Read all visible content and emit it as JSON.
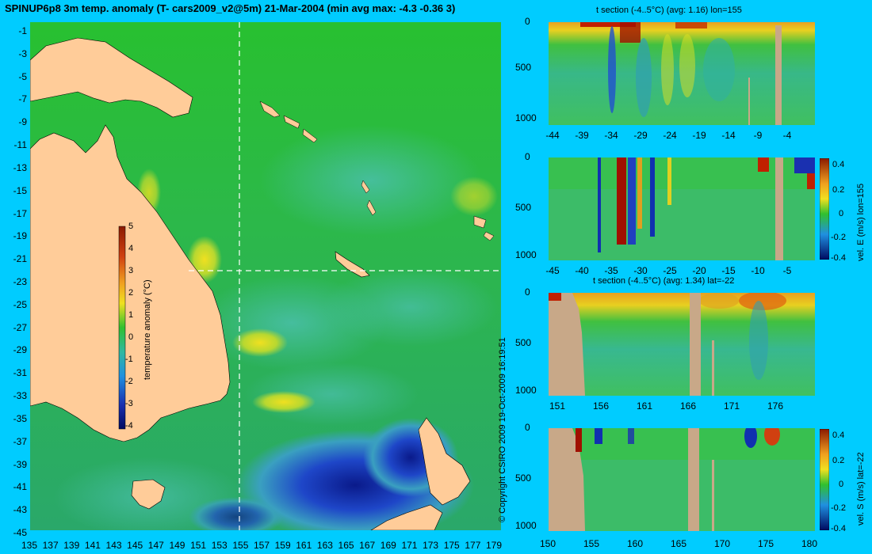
{
  "map": {
    "title": "SPINUP6p8 3m temp. anomaly (T- cars2009_v2@5m) 21-Mar-2004 (min avg max: -4.3 -0.36 3)",
    "lat_ticks": [
      "-1",
      "-3",
      "-5",
      "-7",
      "-9",
      "-11",
      "-13",
      "-15",
      "-17",
      "-19",
      "-21",
      "-23",
      "-25",
      "-27",
      "-29",
      "-31",
      "-33",
      "-35",
      "-37",
      "-39",
      "-41",
      "-43",
      "-45"
    ],
    "lon_ticks": [
      "135",
      "137",
      "139",
      "141",
      "143",
      "145",
      "147",
      "149",
      "151",
      "153",
      "155",
      "157",
      "159",
      "161",
      "163",
      "165",
      "167",
      "169",
      "171",
      "173",
      "175",
      "177",
      "179"
    ],
    "colorbar": {
      "label": "temperature anomaly (°C)",
      "ticks": [
        "5",
        "4",
        "3",
        "2",
        "1",
        "0",
        "-1",
        "-2",
        "-3",
        "-4"
      ]
    },
    "crosshair": {
      "lon": 155,
      "lat": -22
    }
  },
  "copyright": "© Copyright CSIRO 2009   19-Oct-2009 16:19:51",
  "panels": [
    {
      "title": "t section (-4..5°C) (avg: 1.16) lon=155",
      "side_label": "",
      "y_ticks": [
        "0",
        "500",
        "1000"
      ],
      "x_ticks": [
        "-44",
        "-39",
        "-34",
        "-29",
        "-24",
        "-19",
        "-14",
        "-9",
        "-4"
      ],
      "colorbar_ticks": []
    },
    {
      "title": "",
      "side_label": "vel. E (m/s) lon=155",
      "y_ticks": [
        "0",
        "500",
        "1000"
      ],
      "x_ticks": [
        "-45",
        "-40",
        "-35",
        "-30",
        "-25",
        "-20",
        "-15",
        "-10",
        "-5"
      ],
      "colorbar_ticks": [
        "0.4",
        "0.2",
        "0",
        "-0.2",
        "-0.4"
      ]
    },
    {
      "title": "t section (-4..5°C) (avg: 1.34) lat=-22",
      "side_label": "",
      "y_ticks": [
        "0",
        "500",
        "1000"
      ],
      "x_ticks": [
        "151",
        "156",
        "161",
        "166",
        "171",
        "176"
      ],
      "colorbar_ticks": []
    },
    {
      "title": "",
      "side_label": "vel. S (m/s) lat=-22",
      "y_ticks": [
        "0",
        "500",
        "1000"
      ],
      "x_ticks": [
        "150",
        "155",
        "160",
        "165",
        "170",
        "175",
        "180"
      ],
      "colorbar_ticks": [
        "0.4",
        "0.2",
        "0",
        "-0.2",
        "-0.4"
      ]
    }
  ],
  "colors": {
    "background": "#00ccff",
    "land": "#ffcc99",
    "section_land": "#c8a888",
    "ocean_base": "#22bb33"
  }
}
